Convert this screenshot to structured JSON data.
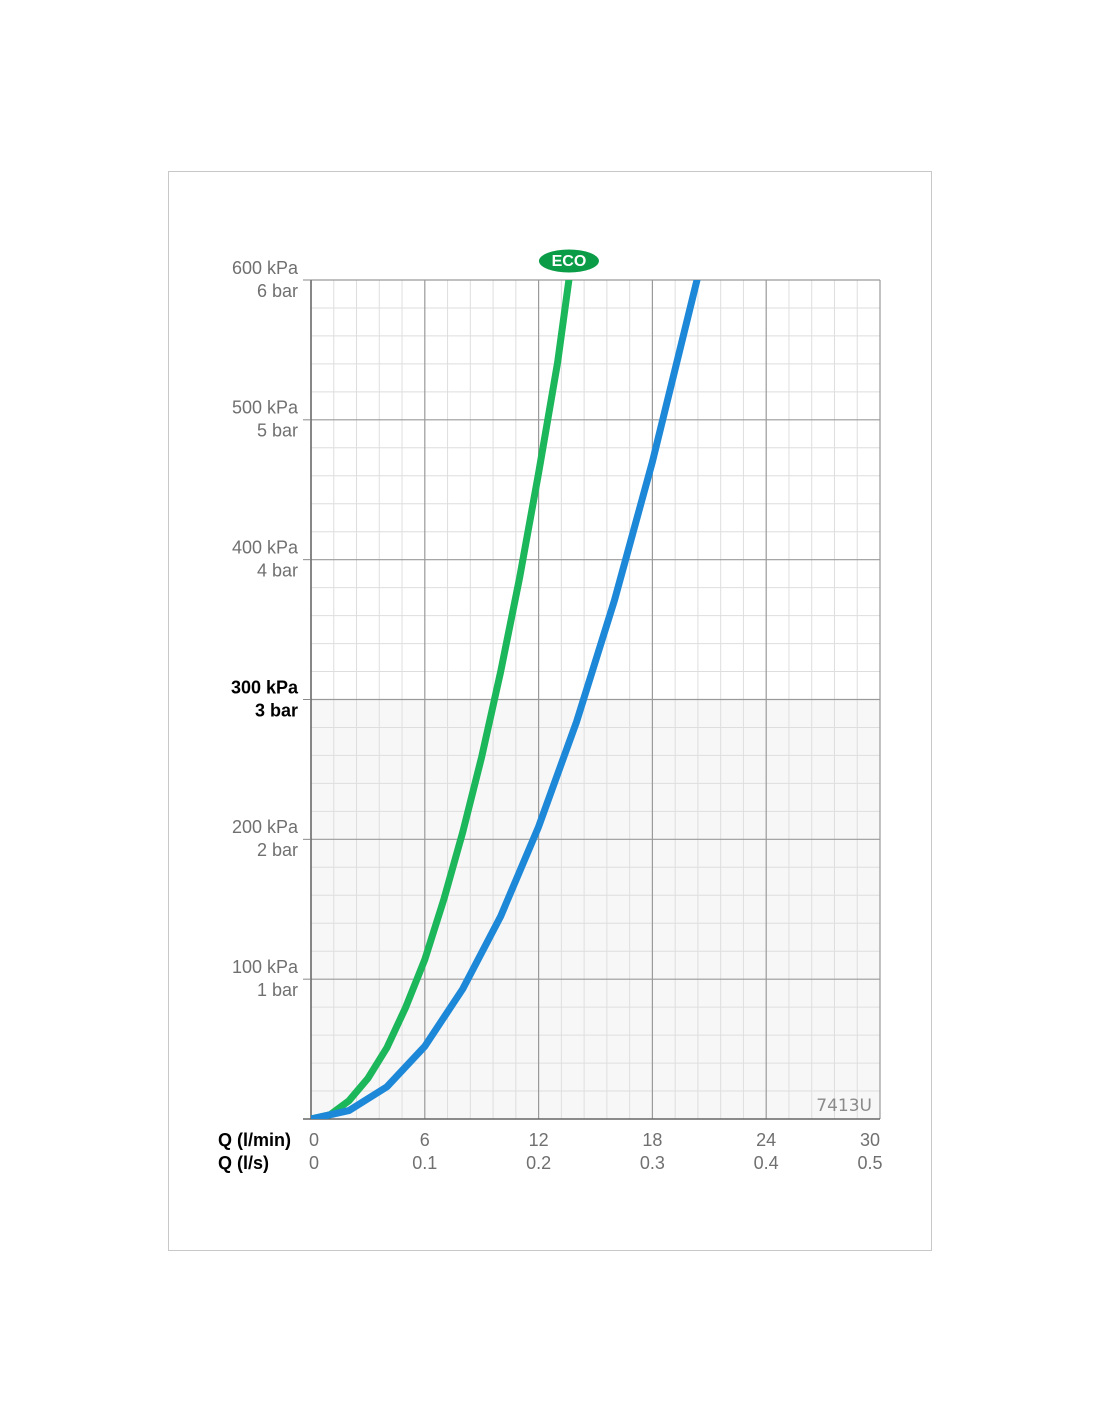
{
  "chart_data": {
    "type": "line",
    "annotation": "7413U",
    "xlabel": "Q (l/min)",
    "x2label": "Q (l/s)",
    "xlim": [
      0,
      30
    ],
    "xticks": [
      0,
      6,
      12,
      18,
      24,
      30
    ],
    "x2lim": [
      0,
      0.5
    ],
    "x2ticks": [
      0,
      0.1,
      0.2,
      0.3,
      0.4,
      0.5
    ],
    "ylim": [
      0,
      600
    ],
    "yticks": [
      {
        "value": 100,
        "label": "100 kPa"
      },
      {
        "value": 200,
        "label": "200 kPa"
      },
      {
        "value": 300,
        "label": "300 kPa"
      },
      {
        "value": 400,
        "label": "400 kPa"
      },
      {
        "value": 500,
        "label": "500 kPa"
      },
      {
        "value": 600,
        "label": "600 kPa"
      }
    ],
    "y2lim": [
      0,
      6
    ],
    "y2ticks": [
      {
        "value": 1,
        "label": "1 bar"
      },
      {
        "value": 2,
        "label": "2 bar"
      },
      {
        "value": 3,
        "label": "3 bar"
      },
      {
        "value": 4,
        "label": "4 bar"
      },
      {
        "value": 5,
        "label": "5 bar"
      },
      {
        "value": 6,
        "label": "6 bar"
      }
    ],
    "highlight_ytick": 300,
    "grid": true,
    "minor_divisions": 5,
    "series": [
      {
        "name": "ECO",
        "color": "#1cb75a",
        "x": [
          0,
          1,
          2,
          3,
          4,
          5,
          6,
          7,
          8,
          9,
          10,
          11,
          12,
          13,
          13.6
        ],
        "values": [
          0,
          3,
          13,
          29,
          51,
          80,
          114,
          157,
          205,
          259,
          320,
          387,
          462,
          541,
          600
        ]
      },
      {
        "color": "#1e88d8",
        "x": [
          0,
          2,
          4,
          6,
          8,
          10,
          12,
          14,
          16,
          18,
          20.35
        ],
        "values": [
          0,
          6,
          23,
          52,
          93,
          145,
          209,
          284,
          371,
          470,
          600
        ]
      }
    ]
  }
}
